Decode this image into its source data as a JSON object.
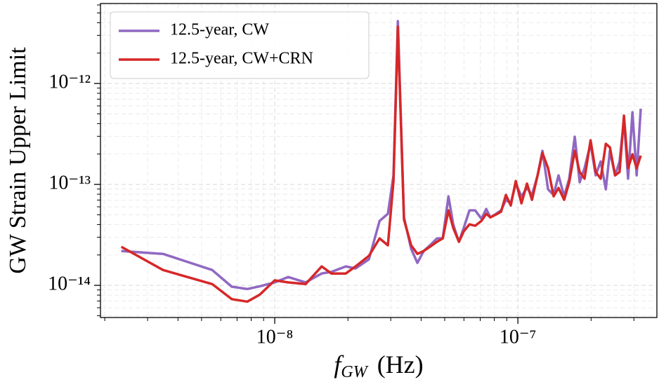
{
  "chart_data": {
    "type": "line",
    "ylabel": "GW Strain Upper Limit",
    "xlabel": {
      "symbol": "f",
      "subscript": "GW",
      "unit": "(Hz)"
    },
    "log_x": true,
    "log_y": true,
    "grid": true,
    "legend": "upper left",
    "xlim": [
      1.92e-09,
      3.73e-07
    ],
    "ylim": [
      4.8e-15,
      6.2e-12
    ],
    "xticks": [
      {
        "value": 1e-08,
        "label": "10⁻⁸"
      },
      {
        "value": 1e-07,
        "label": "10⁻⁷"
      }
    ],
    "yticks": [
      {
        "value": 1e-14,
        "label": "10⁻¹⁴"
      },
      {
        "value": 1e-13,
        "label": "10⁻¹³"
      },
      {
        "value": 1e-12,
        "label": "10⁻¹²"
      }
    ],
    "xminorticks": [
      2e-09,
      3e-09,
      4e-09,
      5e-09,
      6e-09,
      7e-09,
      8e-09,
      9e-09,
      2e-08,
      3e-08,
      4e-08,
      5e-08,
      6e-08,
      7e-08,
      8e-08,
      9e-08,
      2e-07,
      3e-07
    ],
    "yminorticks": [
      5e-15,
      6e-15,
      7e-15,
      8e-15,
      9e-15,
      2e-14,
      3e-14,
      4e-14,
      5e-14,
      6e-14,
      7e-14,
      8e-14,
      9e-14,
      2e-13,
      3e-13,
      4e-13,
      5e-13,
      6e-13,
      7e-13,
      8e-13,
      9e-13,
      2e-12,
      3e-12,
      4e-12,
      5e-12,
      6e-12
    ],
    "x": [
      2.34e-09,
      3.47e-09,
      5.53e-09,
      6.66e-09,
      7.71e-09,
      8.69e-09,
      1e-08,
      1.135e-08,
      1.34e-08,
      1.56e-08,
      1.71e-08,
      1.96e-08,
      2.15e-08,
      2.44e-08,
      2.7e-08,
      2.92e-08,
      3.08e-08,
      3.21e-08,
      3.4e-08,
      3.64e-08,
      3.86e-08,
      4.1e-08,
      4.35e-08,
      4.65e-08,
      4.91e-08,
      5.18e-08,
      5.42e-08,
      5.72e-08,
      5.99e-08,
      6.32e-08,
      6.67e-08,
      7.08e-08,
      7.41e-08,
      7.71e-08,
      8.13e-08,
      8.53e-08,
      8.93e-08,
      9.35e-08,
      9.8e-08,
      1.034e-07,
      1.09e-07,
      1.143e-07,
      1.205e-07,
      1.262e-07,
      1.331e-07,
      1.403e-07,
      1.47e-07,
      1.55e-07,
      1.626e-07,
      1.714e-07,
      1.795e-07,
      1.88e-07,
      1.99e-07,
      2.09e-07,
      2.19e-07,
      2.3e-07,
      2.39e-07,
      2.51e-07,
      2.62e-07,
      2.73e-07,
      2.84e-07,
      2.96e-07,
      3.08e-07,
      3.2e-07
    ],
    "series": [
      {
        "name": "12.5-year, CW",
        "color": "#9068c2",
        "values": [
          2.19e-14,
          2.05e-14,
          1.42e-14,
          9.7e-15,
          9.2e-15,
          9.8e-15,
          1.07e-14,
          1.21e-14,
          1.07e-14,
          1.31e-14,
          1.36e-14,
          1.54e-14,
          1.47e-14,
          1.81e-14,
          4.35e-14,
          5.11e-14,
          1.23e-13,
          4.15e-12,
          4.72e-14,
          2.3e-14,
          1.67e-14,
          2.19e-14,
          2.49e-14,
          2.92e-14,
          2.92e-14,
          7.62e-14,
          4.02e-14,
          2.7e-14,
          3.71e-14,
          5.53e-14,
          5.53e-14,
          4.57e-14,
          5.71e-14,
          4.72e-14,
          5.11e-14,
          5.53e-14,
          7.03e-14,
          6.49e-14,
          1.02e-13,
          7.62e-14,
          9.23e-14,
          7.87e-14,
          1.23e-13,
          2.15e-13,
          8.94e-14,
          7.87e-14,
          1.23e-13,
          7.62e-14,
          1.14e-13,
          2.97e-13,
          1.05e-13,
          1.45e-13,
          2.53e-13,
          1.23e-13,
          1.69e-13,
          8.94e-14,
          2.15e-13,
          1.23e-13,
          1.69e-13,
          4.42e-13,
          1.14e-13,
          5.19e-13,
          1.23e-13,
          5.62e-13
        ]
      },
      {
        "name": "12.5-year, CW+CRN",
        "color": "#d62728",
        "values": [
          2.41e-14,
          1.42e-14,
          1.03e-14,
          7.3e-15,
          6.9e-15,
          8.1e-15,
          1.12e-14,
          1.07e-14,
          1.03e-14,
          1.54e-14,
          1.31e-14,
          1.31e-14,
          1.54e-14,
          1.96e-14,
          2.92e-14,
          2.49e-14,
          1.08e-13,
          3.65e-12,
          4.5e-14,
          2.49e-14,
          2.05e-14,
          2.19e-14,
          2.41e-14,
          2.7e-14,
          2.92e-14,
          5.53e-14,
          3.71e-14,
          2.7e-14,
          3.43e-14,
          4.02e-14,
          3.89e-14,
          4.35e-14,
          5.11e-14,
          4.72e-14,
          5.03e-14,
          5.36e-14,
          7.87e-14,
          6.19e-14,
          1.08e-13,
          6.49e-14,
          1.02e-13,
          7.03e-14,
          1.23e-13,
          2.05e-13,
          1.45e-13,
          7.62e-14,
          9.23e-14,
          7.03e-14,
          1.05e-13,
          2.15e-13,
          1.33e-13,
          1.14e-13,
          2.74e-13,
          1.33e-13,
          1.14e-13,
          2.53e-13,
          2.33e-13,
          1.23e-13,
          1.33e-13,
          4.8e-13,
          1.45e-13,
          1.99e-13,
          1.45e-13,
          1.93e-13
        ]
      }
    ]
  }
}
